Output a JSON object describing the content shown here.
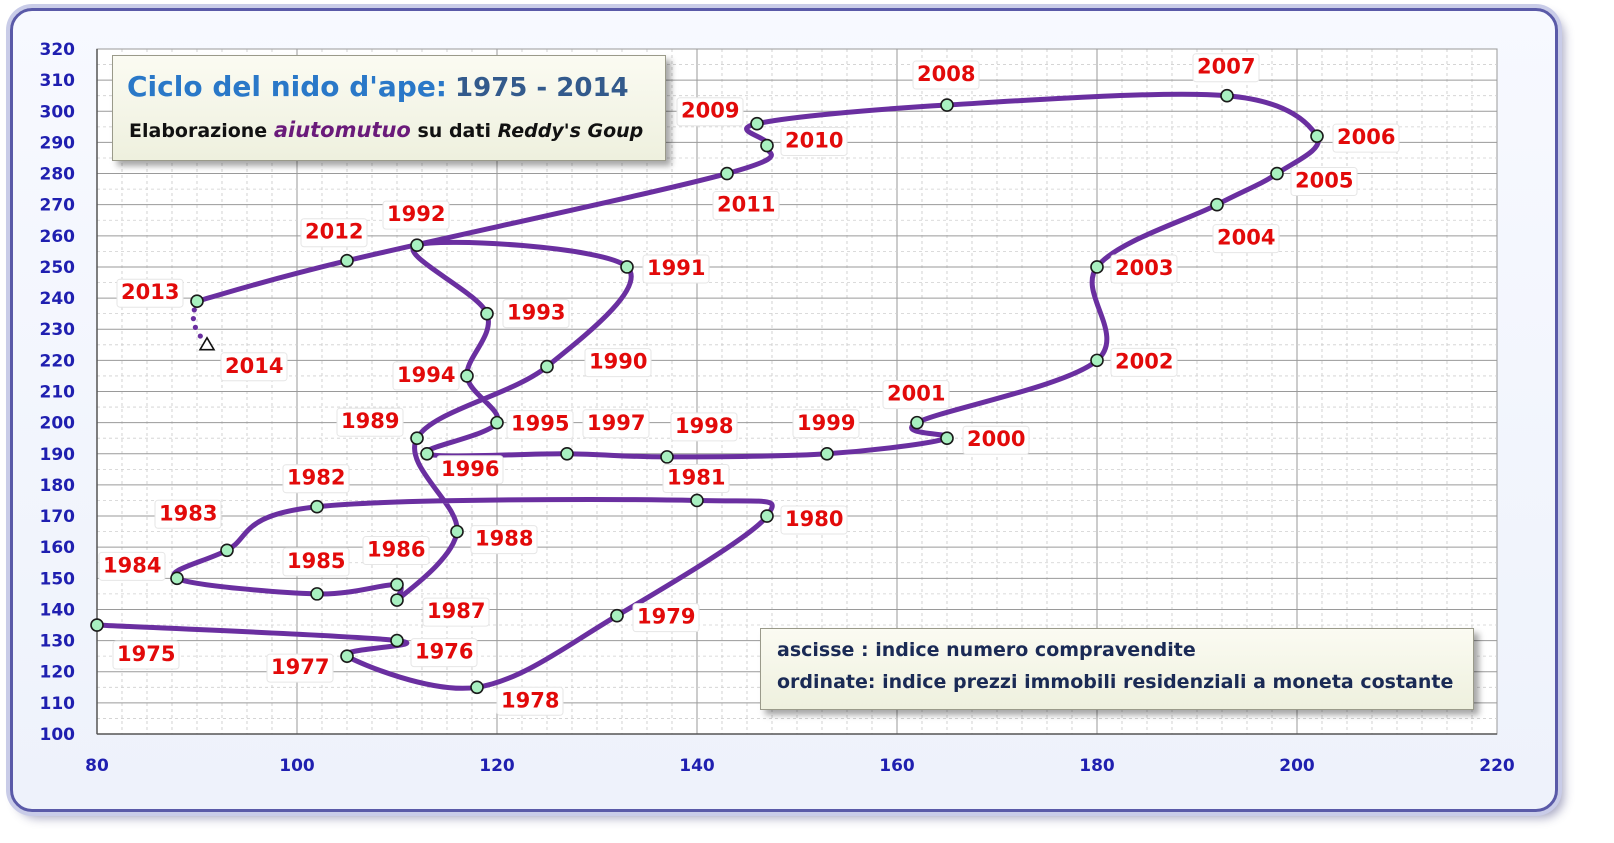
{
  "title": {
    "main": "Ciclo del nido d'ape:",
    "years": "1975 - 2014",
    "sub_prefix": "Elaborazione",
    "sub_brand": "aiutomutuo",
    "sub_mid": "su dati",
    "sub_source": "Reddy's Goup"
  },
  "legend": {
    "line1": "ascisse   : indice numero compravendite",
    "line2": "ordinate: indice prezzi immobili residenziali a moneta costante"
  },
  "colors": {
    "line": "#6a2fa0",
    "marker_fill": "#a8f0c0",
    "year_label": "#e20a0a",
    "axis_tick": "#1f1fb0"
  },
  "chart_data": {
    "type": "line",
    "title": "Ciclo del nido d'ape: 1975 - 2014",
    "xlabel": "ascisse : indice numero compravendite",
    "ylabel": "ordinate: indice prezzi immobili residenziali a moneta costante",
    "xlim": [
      80,
      220
    ],
    "ylim": [
      100,
      320
    ],
    "x_ticks": [
      80,
      100,
      120,
      140,
      160,
      180,
      200,
      220
    ],
    "y_ticks": [
      100,
      110,
      120,
      130,
      140,
      150,
      160,
      170,
      180,
      190,
      200,
      210,
      220,
      230,
      240,
      250,
      260,
      270,
      280,
      290,
      300,
      310,
      320
    ],
    "grid": true,
    "marker_x": "triangle",
    "points": [
      {
        "year": "1975",
        "x": 80,
        "y": 135
      },
      {
        "year": "1976",
        "x": 110,
        "y": 130
      },
      {
        "year": "1977",
        "x": 105,
        "y": 125
      },
      {
        "year": "1978",
        "x": 118,
        "y": 115
      },
      {
        "year": "1979",
        "x": 132,
        "y": 138
      },
      {
        "year": "1980",
        "x": 147,
        "y": 170
      },
      {
        "year": "1981",
        "x": 140,
        "y": 175
      },
      {
        "year": "1982",
        "x": 102,
        "y": 173
      },
      {
        "year": "1983",
        "x": 93,
        "y": 159
      },
      {
        "year": "1984",
        "x": 88,
        "y": 150
      },
      {
        "year": "1985",
        "x": 102,
        "y": 145
      },
      {
        "year": "1986",
        "x": 110,
        "y": 148
      },
      {
        "year": "1987",
        "x": 110,
        "y": 143
      },
      {
        "year": "1988",
        "x": 116,
        "y": 165
      },
      {
        "year": "1989",
        "x": 112,
        "y": 195
      },
      {
        "year": "1990",
        "x": 125,
        "y": 218
      },
      {
        "year": "1991",
        "x": 133,
        "y": 250
      },
      {
        "year": "1992",
        "x": 112,
        "y": 257
      },
      {
        "year": "1993",
        "x": 119,
        "y": 235
      },
      {
        "year": "1994",
        "x": 117,
        "y": 215
      },
      {
        "year": "1995",
        "x": 120,
        "y": 200
      },
      {
        "year": "1996",
        "x": 113,
        "y": 190
      },
      {
        "year": "1997",
        "x": 127,
        "y": 190
      },
      {
        "year": "1998",
        "x": 137,
        "y": 189
      },
      {
        "year": "1999",
        "x": 153,
        "y": 190
      },
      {
        "year": "2000",
        "x": 165,
        "y": 195
      },
      {
        "year": "2001",
        "x": 162,
        "y": 200
      },
      {
        "year": "2002",
        "x": 180,
        "y": 220
      },
      {
        "year": "2003",
        "x": 180,
        "y": 250
      },
      {
        "year": "2004",
        "x": 192,
        "y": 270
      },
      {
        "year": "2005",
        "x": 198,
        "y": 280
      },
      {
        "year": "2006",
        "x": 202,
        "y": 292
      },
      {
        "year": "2007",
        "x": 193,
        "y": 305
      },
      {
        "year": "2008",
        "x": 165,
        "y": 302
      },
      {
        "year": "2009",
        "x": 146,
        "y": 296
      },
      {
        "year": "2010",
        "x": 147,
        "y": 289
      },
      {
        "year": "2011",
        "x": 143,
        "y": 280
      },
      {
        "year": "2012",
        "x": 105,
        "y": 252
      },
      {
        "year": "2013",
        "x": 90,
        "y": 239
      },
      {
        "year": "2014",
        "x": 91,
        "y": 225
      }
    ]
  }
}
